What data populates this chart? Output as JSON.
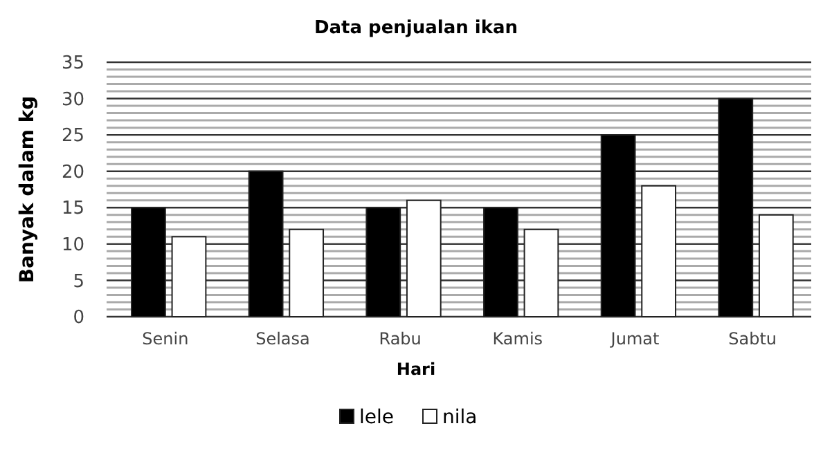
{
  "chart_data": {
    "type": "bar",
    "title": "Data penjualan ikan",
    "xlabel": "Hari",
    "ylabel": "Banyak dalam kg",
    "categories": [
      "Senin",
      "Selasa",
      "Rabu",
      "Kamis",
      "Jumat",
      "Sabtu"
    ],
    "series": [
      {
        "name": "lele",
        "color": "#000000",
        "values": [
          15,
          20,
          15,
          15,
          25,
          30
        ]
      },
      {
        "name": "nila",
        "color": "#ffffff",
        "values": [
          11,
          12,
          16,
          12,
          18,
          14
        ]
      }
    ],
    "ylim": [
      0,
      35
    ],
    "yticks": [
      0,
      {
        "value": 1,
        "label": null
      },
      {
        "value": 2,
        "label": null
      },
      {
        "value": 3,
        "label": null
      },
      {
        "value": 4,
        "label": null
      },
      5,
      {
        "value": 6,
        "label": null
      },
      {
        "value": 7,
        "label": null
      },
      {
        "value": 8,
        "label": null
      },
      {
        "value": 9,
        "label": null
      },
      10,
      {
        "value": 11,
        "label": null
      },
      {
        "value": 12,
        "label": null
      },
      {
        "value": 13,
        "label": null
      },
      {
        "value": 14,
        "label": null
      },
      15,
      {
        "value": 16,
        "label": null
      },
      {
        "value": 17,
        "label": null
      },
      {
        "value": 18,
        "label": null
      },
      {
        "value": 19,
        "label": null
      },
      20,
      {
        "value": 21,
        "label": null
      },
      {
        "value": 22,
        "label": null
      },
      {
        "value": 23,
        "label": null
      },
      {
        "value": 24,
        "label": null
      },
      25,
      {
        "value": 26,
        "label": null
      },
      {
        "value": 27,
        "label": null
      },
      {
        "value": 28,
        "label": null
      },
      {
        "value": 29,
        "label": null
      },
      30,
      {
        "value": 31,
        "label": null
      },
      {
        "value": 32,
        "label": null
      },
      {
        "value": 33,
        "label": null
      },
      {
        "value": 34,
        "label": null
      },
      35
    ],
    "grid": true,
    "legend": "bottom"
  }
}
